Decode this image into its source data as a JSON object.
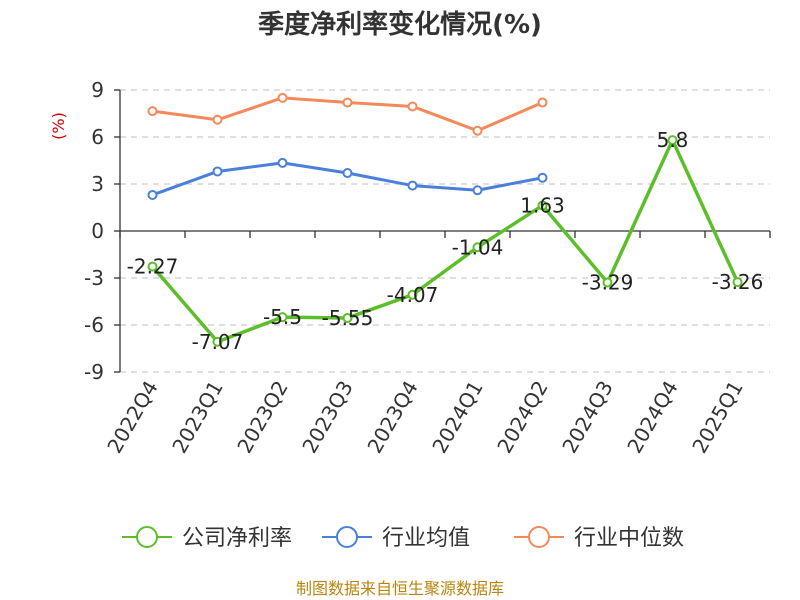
{
  "chart_data": {
    "type": "line",
    "title": "季度净利率变化情况(%)",
    "ylabel": "(%)",
    "categories": [
      "2022Q4",
      "2023Q1",
      "2023Q2",
      "2023Q3",
      "2023Q4",
      "2024Q1",
      "2024Q2",
      "2024Q3",
      "2024Q4",
      "2025Q1"
    ],
    "ylim": [
      -9,
      9
    ],
    "yticks": [
      9,
      6,
      3,
      0,
      -3,
      -6,
      -9
    ],
    "grid": true,
    "legend_position": "bottom",
    "series": [
      {
        "name": "公司净利率",
        "color": "#5cbf2a",
        "values": [
          -2.27,
          -7.07,
          -5.5,
          -5.55,
          -4.07,
          -1.04,
          1.63,
          -3.29,
          5.8,
          -3.26
        ],
        "labels": [
          "-2.27",
          "-7.07",
          "-5.5",
          "-5.55",
          "-4.07",
          "-1.04",
          "1.63",
          "-3.29",
          "5.8",
          "-3.26"
        ]
      },
      {
        "name": "行业均值",
        "color": "#4a7fdc",
        "values": [
          2.3,
          3.8,
          4.35,
          3.7,
          2.9,
          2.6,
          3.4,
          null,
          null,
          null
        ]
      },
      {
        "name": "行业中位数",
        "color": "#f5895a",
        "values": [
          7.65,
          7.1,
          8.5,
          8.2,
          7.95,
          6.4,
          8.2,
          null,
          null,
          null
        ]
      }
    ]
  },
  "source": "制图数据来自恒生聚源数据库"
}
